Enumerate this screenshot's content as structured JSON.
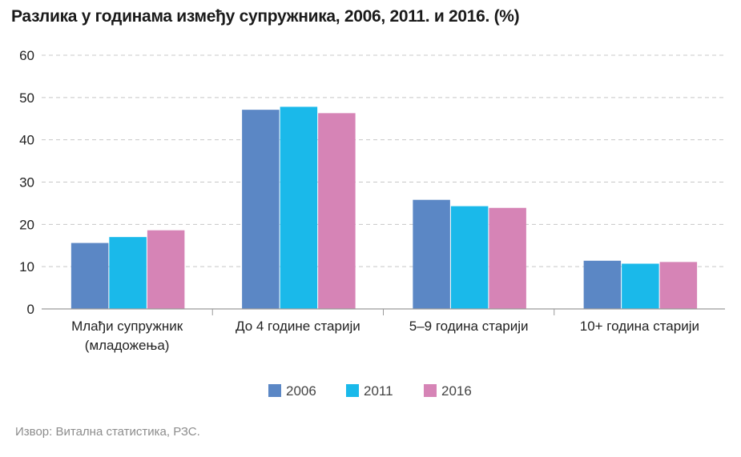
{
  "title": "Разлика у годинама између супружника, 2006, 2011. и 2016. (%)",
  "source": "Извор: Витална статистика, РЗС.",
  "chart_data": {
    "type": "bar",
    "title": "Разлика у годинама између супружника, 2006, 2011. и 2016. (%)",
    "xlabel": "",
    "ylabel": "",
    "ylim": [
      0,
      60
    ],
    "yticks": [
      0,
      10,
      20,
      30,
      40,
      50,
      60
    ],
    "grid": true,
    "legend_position": "bottom",
    "categories": [
      [
        "Млађи супружник",
        "(младожења)"
      ],
      [
        "До 4 године старији"
      ],
      [
        "5–9 година старији"
      ],
      [
        "10+ година старији"
      ]
    ],
    "series": [
      {
        "name": "2006",
        "color": "#5b87c5",
        "values": [
          15.6,
          47.1,
          25.8,
          11.4
        ]
      },
      {
        "name": "2011",
        "color": "#1ab9ea",
        "values": [
          17.0,
          47.8,
          24.3,
          10.7
        ]
      },
      {
        "name": "2016",
        "color": "#d684b6",
        "values": [
          18.6,
          46.3,
          23.9,
          11.1
        ]
      }
    ]
  }
}
